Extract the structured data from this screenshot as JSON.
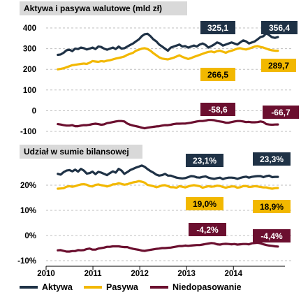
{
  "chart_data": [
    {
      "type": "line",
      "title": "Aktywa i pasywa walutowe  (mld  zł)",
      "ylim": [
        -100,
        420
      ],
      "yticks": [
        "400",
        "300",
        "200",
        "100",
        "0",
        "-100"
      ],
      "ytick_values": [
        400,
        300,
        200,
        100,
        0,
        -100
      ],
      "grid": true,
      "series": [
        {
          "name": "Aktywa",
          "color": "#1f3246",
          "values": [
            270,
            272,
            280,
            292,
            295,
            288,
            300,
            298,
            305,
            302,
            296,
            300,
            305,
            298,
            310,
            308,
            300,
            295,
            300,
            305,
            298,
            310,
            300,
            302,
            310,
            318,
            325,
            335,
            345,
            360,
            370,
            372,
            360,
            345,
            335,
            320,
            310,
            300,
            290,
            305,
            310,
            315,
            320,
            310,
            312,
            305,
            310,
            315,
            310,
            320,
            325,
            318,
            305,
            312,
            320,
            330,
            325,
            315,
            320,
            325,
            330,
            325,
            320,
            330,
            340,
            335,
            325,
            330,
            335,
            345,
            356,
            360,
            375,
            365,
            355,
            352,
            356
          ]
        },
        {
          "name": "Pasywa",
          "color": "#f2b800",
          "values": [
            200,
            202,
            205,
            210,
            215,
            220,
            222,
            224,
            226,
            228,
            226,
            232,
            240,
            238,
            236,
            240,
            238,
            242,
            244,
            248,
            252,
            255,
            258,
            262,
            270,
            275,
            280,
            290,
            295,
            300,
            302,
            298,
            290,
            278,
            268,
            258,
            252,
            250,
            248,
            252,
            256,
            262,
            268,
            260,
            255,
            250,
            254,
            260,
            265,
            270,
            275,
            280,
            284,
            286,
            282,
            288,
            290,
            285,
            280,
            286,
            290,
            295,
            300,
            302,
            298,
            296,
            300,
            305,
            310,
            312,
            308,
            305,
            300,
            295,
            292,
            290,
            290
          ]
        },
        {
          "name": "Niedopasowanie",
          "color": "#6b0f2f",
          "values": [
            -65,
            -67,
            -70,
            -72,
            -72,
            -70,
            -75,
            -75,
            -72,
            -70,
            -70,
            -68,
            -65,
            -63,
            -65,
            -68,
            -66,
            -60,
            -58,
            -55,
            -52,
            -50,
            -50,
            -52,
            -62,
            -68,
            -72,
            -75,
            -78,
            -82,
            -85,
            -82,
            -80,
            -78,
            -76,
            -75,
            -72,
            -70,
            -70,
            -68,
            -65,
            -63,
            -63,
            -62,
            -62,
            -60,
            -58,
            -55,
            -52,
            -50,
            -50,
            -48,
            -45,
            -45,
            -46,
            -50,
            -52,
            -54,
            -58,
            -58,
            -55,
            -52,
            -50,
            -50,
            -52,
            -55,
            -54,
            -56,
            -56,
            -55,
            -52,
            -55,
            -65,
            -67,
            -68,
            -67,
            -66.7
          ]
        }
      ],
      "annotations": [
        {
          "text": "325,1",
          "series": "Aktywa"
        },
        {
          "text": "356,4",
          "series": "Aktywa"
        },
        {
          "text": "266,5",
          "series": "Pasywa"
        },
        {
          "text": "289,7",
          "series": "Pasywa"
        },
        {
          "text": "-58,6",
          "series": "Niedopasowanie"
        },
        {
          "text": "-66,7",
          "series": "Niedopasowanie"
        }
      ]
    },
    {
      "type": "line",
      "title": "Udział  w sumie bilansowej",
      "ylim": [
        -10,
        30
      ],
      "yticks": [
        "20%",
        "10%",
        "0%",
        "-10%"
      ],
      "ytick_values": [
        20,
        10,
        0,
        -10
      ],
      "x_ticks": [
        "2010",
        "2011",
        "2012",
        "2013",
        "2014"
      ],
      "xlim": [
        2010,
        2015.1
      ],
      "grid": true,
      "series": [
        {
          "name": "Aktywa",
          "color": "#1f3246",
          "values": [
            24.5,
            24.2,
            25.2,
            25.8,
            26.0,
            25.5,
            26.2,
            25.4,
            26.5,
            25.8,
            24.6,
            24.8,
            25.4,
            24.4,
            25.3,
            25.0,
            24.5,
            24.0,
            24.8,
            25.5,
            25.0,
            26.5,
            25.8,
            24.5,
            25.2,
            26.0,
            26.5,
            27.0,
            27.4,
            27.8,
            27.3,
            26.4,
            25.6,
            25.0,
            24.2,
            23.8,
            24.0,
            24.5,
            23.8,
            23.8,
            23.4,
            23.0,
            22.8,
            22.7,
            22.8,
            23.2,
            23.6,
            23.5,
            23.1,
            23.0,
            23.3,
            23.5,
            23.0,
            22.7,
            22.5,
            22.8,
            23.0,
            22.4,
            22.8,
            23.0,
            23.0,
            22.9,
            22.5,
            22.9,
            23.2,
            23.4,
            23.0,
            23.3,
            23.5,
            23.6,
            23.6,
            23.2,
            23.6,
            23.8,
            23.2,
            23.3,
            23.3
          ]
        },
        {
          "name": "Pasywa",
          "color": "#f2b800",
          "values": [
            18.6,
            18.7,
            18.8,
            19.4,
            19.6,
            19.4,
            19.6,
            20.0,
            20.3,
            20.4,
            20.2,
            19.6,
            19.5,
            20.1,
            20.3,
            20.0,
            19.8,
            19.5,
            19.8,
            20.3,
            20.4,
            20.8,
            20.5,
            20.2,
            20.4,
            20.8,
            21.1,
            21.3,
            21.6,
            21.4,
            21.0,
            20.1,
            19.9,
            19.6,
            19.2,
            19.5,
            19.9,
            20.0,
            19.6,
            19.2,
            19.2,
            19.0,
            19.6,
            19.4,
            19.1,
            19.5,
            19.8,
            20.0,
            19.8,
            19.6,
            19.0,
            19.3,
            19.6,
            19.4,
            19.5,
            19.8,
            19.7,
            19.3,
            19.0,
            19.3,
            19.5,
            19.5,
            19.0,
            19.2,
            19.6,
            19.7,
            19.3,
            19.4,
            19.6,
            19.5,
            19.3,
            19.1,
            19.1,
            18.8,
            18.6,
            18.8,
            18.9
          ]
        },
        {
          "name": "Niedopasowanie",
          "color": "#6b0f2f",
          "values": [
            -5.9,
            -5.8,
            -6.1,
            -6.4,
            -6.4,
            -6.2,
            -6.2,
            -5.8,
            -5.9,
            -5.8,
            -5.4,
            -5.2,
            -5.6,
            -5.6,
            -5.2,
            -5.0,
            -4.8,
            -4.5,
            -4.5,
            -4.3,
            -4.3,
            -4.3,
            -4.5,
            -4.6,
            -4.6,
            -5.0,
            -5.3,
            -5.5,
            -5.7,
            -6.0,
            -6.1,
            -5.9,
            -5.7,
            -5.5,
            -5.3,
            -5.2,
            -5.0,
            -5.0,
            -4.9,
            -4.8,
            -4.6,
            -4.4,
            -4.2,
            -4.2,
            -4.0,
            -4.1,
            -4.0,
            -3.9,
            -3.8,
            -3.8,
            -3.6,
            -3.4,
            -3.2,
            -3.0,
            -3.1,
            -3.5,
            -3.6,
            -3.4,
            -3.3,
            -3.4,
            -3.5,
            -3.4,
            -3.6,
            -3.5,
            -3.4,
            -3.4,
            -3.5,
            -3.1,
            -3.0,
            -2.9,
            -3.1,
            -3.5,
            -3.8,
            -4.0,
            -4.1,
            -4.3,
            -4.4
          ]
        }
      ],
      "annotations": [
        {
          "text": "23,1%",
          "series": "Aktywa"
        },
        {
          "text": "23,3%",
          "series": "Aktywa"
        },
        {
          "text": "19,0%",
          "series": "Pasywa"
        },
        {
          "text": "18,9%",
          "series": "Pasywa"
        },
        {
          "text": "-4,2%",
          "series": "Niedopasowanie"
        },
        {
          "text": "-4,4%",
          "series": "Niedopasowanie"
        }
      ]
    }
  ],
  "legend": [
    {
      "label": "Aktywa",
      "color": "#1f3246"
    },
    {
      "label": "Pasywa",
      "color": "#f2b800"
    },
    {
      "label": "Niedopasowanie",
      "color": "#6b0f2f"
    }
  ]
}
